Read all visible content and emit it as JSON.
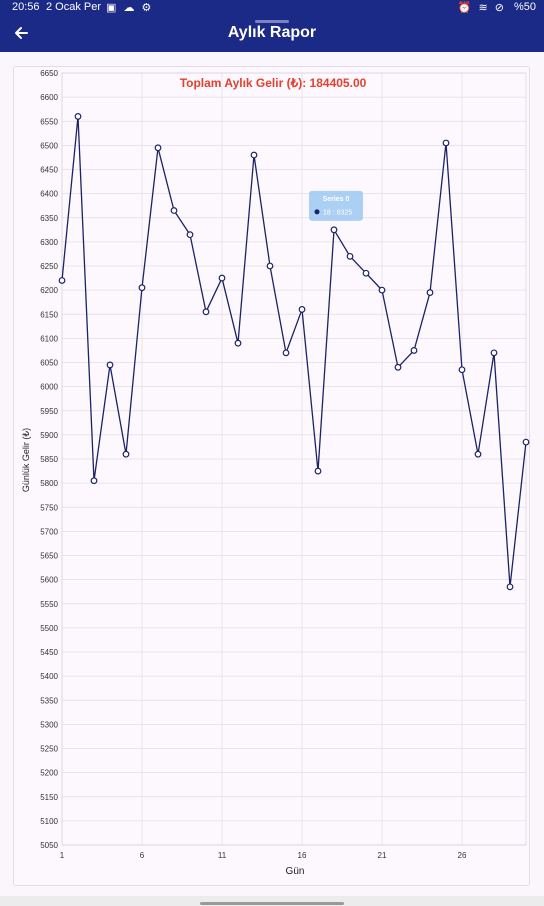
{
  "status_bar": {
    "time": "20:56",
    "date": "2 Ocak Per",
    "left_icons": "▣ ☁ ⚙",
    "right_icons": "⏰ ≋ ⊘",
    "battery": "%50"
  },
  "app_bar": {
    "title": "Aylık Rapor",
    "back_icon": "arrow-left-icon"
  },
  "chart_data": {
    "type": "line",
    "title": "Toplam Aylık Gelir (₺):  184405.00",
    "xlabel": "Gün",
    "ylabel": "Günlük Gelir (₺)",
    "ylim": [
      5050,
      6650
    ],
    "xlim": [
      1,
      30
    ],
    "y_tick_step": 50,
    "x_ticks": [
      1,
      6,
      11,
      16,
      21,
      26
    ],
    "grid": true,
    "line_color": "#1a2366",
    "series": [
      {
        "x": [
          1,
          2,
          3,
          4,
          5,
          6,
          7,
          8,
          9,
          10,
          11,
          12,
          13,
          14,
          15,
          16,
          17,
          18,
          19,
          20,
          21,
          22,
          23,
          24,
          25,
          26,
          27,
          28,
          29,
          30
        ],
        "values": [
          6220,
          6560,
          5805,
          6045,
          5860,
          6205,
          6495,
          6365,
          6315,
          6155,
          6225,
          6090,
          6480,
          6250,
          6070,
          6160,
          5825,
          6325,
          6270,
          6235,
          6200,
          6040,
          6075,
          6195,
          6505,
          6035,
          5860,
          6070,
          5585,
          5885
        ]
      }
    ],
    "tooltip": {
      "title": "Series 0",
      "text": "18 : 6325",
      "x": 18
    }
  }
}
